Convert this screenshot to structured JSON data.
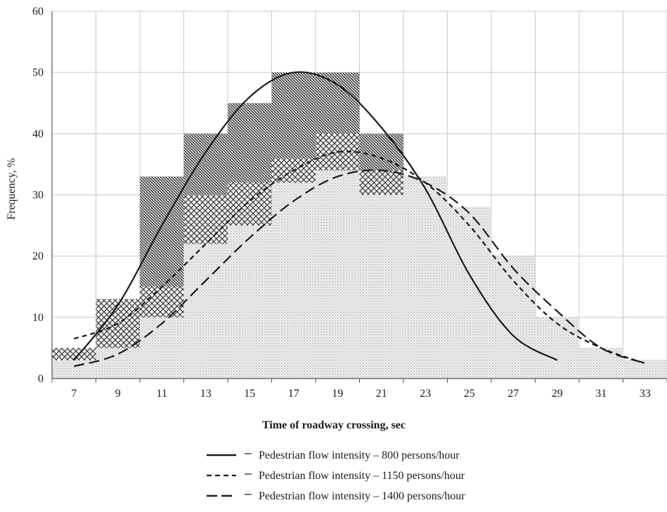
{
  "chart_data": {
    "type": "bar",
    "xlabel": "Time of roadway crossing, sec",
    "ylabel": "Frequency, %",
    "ylim": [
      0,
      60
    ],
    "yticks": [
      "0",
      "10",
      "20",
      "30",
      "40",
      "50",
      "60"
    ],
    "xlim": [
      6,
      34
    ],
    "xticks": [
      "7",
      "9",
      "11",
      "13",
      "15",
      "17",
      "19",
      "21",
      "23",
      "25",
      "27",
      "29",
      "31",
      "33"
    ],
    "grid": true,
    "legend_position": "bottom",
    "bin_edges": [
      6,
      8,
      10,
      12,
      14,
      16,
      18,
      20,
      22,
      24,
      26,
      28,
      30,
      32,
      34
    ],
    "histograms": [
      {
        "fill": "dotted",
        "values": [
          3,
          5,
          10,
          22,
          25,
          32,
          34,
          30,
          33,
          28,
          20,
          10,
          5,
          3
        ]
      },
      {
        "fill": "cross-hatched",
        "values": [
          5,
          13,
          15,
          30,
          32,
          36,
          40,
          34,
          31,
          28,
          20,
          10,
          5,
          3
        ]
      },
      {
        "fill": "diagonal-hatched",
        "values": [
          4,
          12,
          33,
          40,
          45,
          50,
          50,
          40,
          33,
          28,
          20,
          10,
          5,
          3
        ]
      }
    ],
    "series": [
      {
        "name": "Pedestrian flow intensity – 800 persons/hour",
        "line_style": "solid",
        "x": [
          7,
          9,
          11,
          13,
          15,
          17,
          19,
          21,
          23,
          25,
          27,
          29
        ],
        "y": [
          3,
          12,
          25,
          37,
          46,
          50,
          48,
          41,
          31,
          17,
          7,
          3
        ]
      },
      {
        "name": "Pedestrian flow intensity – 1150 persons/hour",
        "line_style": "short-dash",
        "x": [
          7,
          9,
          11,
          13,
          15,
          17,
          19,
          21,
          23,
          25,
          27,
          29,
          31,
          33
        ],
        "y": [
          6.5,
          9,
          15,
          22,
          29,
          34,
          37,
          36,
          32,
          25,
          16,
          9,
          5,
          2.5
        ]
      },
      {
        "name": "Pedestrian flow intensity – 1400 persons/hour",
        "line_style": "long-dash",
        "x": [
          7,
          9,
          11,
          13,
          15,
          17,
          19,
          21,
          23,
          25,
          27,
          29,
          31,
          33
        ],
        "y": [
          2,
          4,
          9,
          16,
          23,
          29,
          33,
          34,
          32,
          27,
          18,
          11,
          5,
          2.5
        ]
      }
    ]
  },
  "colors": {
    "grid": "#c8c8c8",
    "axis": "#555555",
    "ink": "#1a1a1a"
  }
}
